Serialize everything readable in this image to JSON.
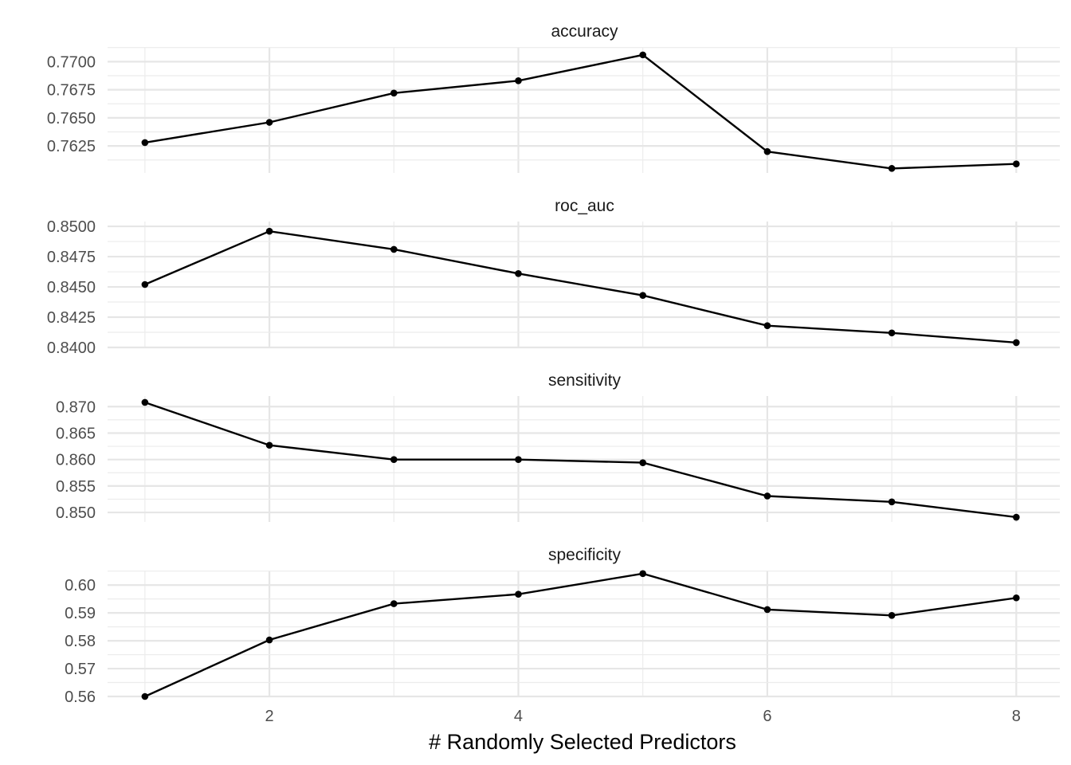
{
  "chart_data": {
    "type": "line",
    "xlabel": "# Randomly Selected Predictors",
    "x": [
      1,
      2,
      3,
      4,
      5,
      6,
      7,
      8
    ],
    "x_ticks": [
      2,
      4,
      6,
      8
    ],
    "xlim": [
      0.7,
      8.35
    ],
    "grid": true,
    "panels": [
      {
        "title": "accuracy",
        "values": [
          0.7628,
          0.7646,
          0.7672,
          0.7683,
          0.7706,
          0.762,
          0.7605,
          0.7609
        ],
        "y_ticks": [
          "0.7625",
          "0.7650",
          "0.7675",
          "0.7700"
        ],
        "ylim": [
          0.7601,
          0.7713
        ]
      },
      {
        "title": "roc_auc",
        "values": [
          0.8452,
          0.8496,
          0.8481,
          0.8461,
          0.8443,
          0.8418,
          0.8412,
          0.8404
        ],
        "y_ticks": [
          "0.8400",
          "0.8425",
          "0.8450",
          "0.8475",
          "0.8500"
        ],
        "ylim": [
          0.84,
          0.8504
        ]
      },
      {
        "title": "sensitivity",
        "values": [
          0.8708,
          0.8627,
          0.86,
          0.86,
          0.8594,
          0.8531,
          0.852,
          0.8491
        ],
        "y_ticks": [
          "0.850",
          "0.855",
          "0.860",
          "0.865",
          "0.870"
        ],
        "ylim": [
          0.8482,
          0.872
        ]
      },
      {
        "title": "specificity",
        "values": [
          0.56,
          0.5803,
          0.5933,
          0.5967,
          0.6041,
          0.5912,
          0.5891,
          0.5954
        ],
        "y_ticks": [
          "0.56",
          "0.57",
          "0.58",
          "0.59",
          "0.60"
        ],
        "ylim": [
          0.56,
          0.6052
        ]
      }
    ]
  }
}
